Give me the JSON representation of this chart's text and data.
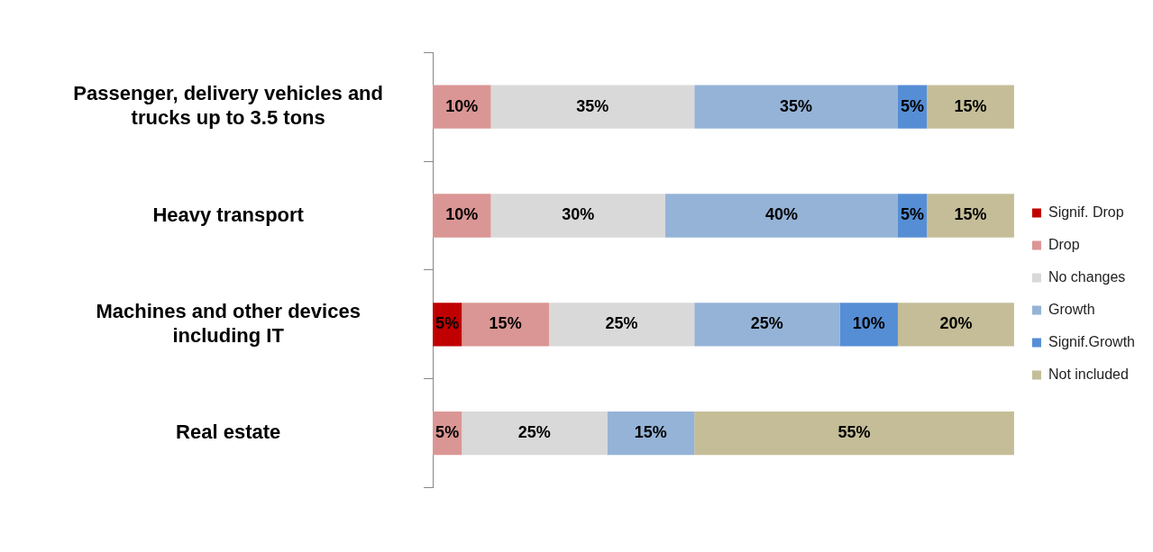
{
  "chart_data": {
    "type": "bar",
    "orientation": "horizontal",
    "stacked": true,
    "legend": "right",
    "categories": [
      "Passenger, delivery vehicles and trucks up to 3.5 tons",
      "Heavy transport",
      "Machines and other devices including IT",
      "Real estate"
    ],
    "series": [
      {
        "name": "Signif. Drop",
        "color": "#c00000",
        "values": [
          null,
          null,
          5,
          null
        ],
        "value_labels": [
          null,
          null,
          "5%",
          null
        ]
      },
      {
        "name": "Drop",
        "color": "#da9694",
        "values": [
          10,
          10,
          15,
          5
        ],
        "value_labels": [
          "10%",
          "10%",
          "15%",
          "5%"
        ]
      },
      {
        "name": "No changes",
        "color": "#d9d9d9",
        "values": [
          35,
          30,
          25,
          25
        ],
        "value_labels": [
          "35%",
          "30%",
          "25%",
          "25%"
        ]
      },
      {
        "name": "Growth",
        "color": "#95b3d7",
        "values": [
          35,
          40,
          25,
          15
        ],
        "value_labels": [
          "35%",
          "40%",
          "25%",
          "15%"
        ]
      },
      {
        "name": "Signif.Growth",
        "color": "#558ed5",
        "values": [
          5,
          5,
          10,
          null
        ],
        "value_labels": [
          "5%",
          "5%",
          "10%",
          null
        ]
      },
      {
        "name": "Not included",
        "color": "#c4bd97",
        "values": [
          15,
          15,
          20,
          55
        ],
        "value_labels": [
          "15%",
          "15%",
          "20%",
          "55%"
        ]
      }
    ]
  }
}
